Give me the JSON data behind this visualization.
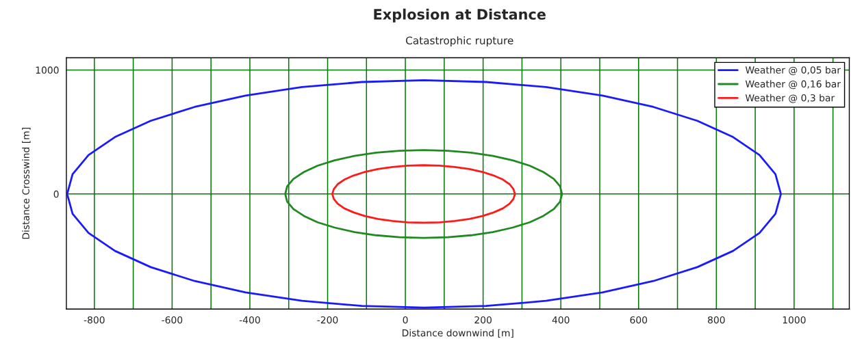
{
  "chart_data": {
    "type": "line",
    "title": "Explosion at Distance",
    "subtitle": "Catastrophic rupture",
    "xlabel": "Distance downwind [m]",
    "ylabel": "Distance Crosswind [m]",
    "series": [
      {
        "name": "Weather @ 0,05 bar",
        "color": "#1a1aff",
        "x": [
          966,
          952,
          911,
          843,
          751,
          638,
          507,
          362,
          208,
          48,
          -112,
          -266,
          -411,
          -542,
          -655,
          -747,
          -815,
          -856,
          -870,
          null,
          -870,
          -856,
          -815,
          -747,
          -655,
          -542,
          -411,
          -266,
          -112,
          48,
          208,
          362,
          507,
          638,
          751,
          843,
          911,
          952,
          966
        ],
        "values": [
          0,
          160,
          314,
          459,
          590,
          702,
          794,
          862,
          903,
          917,
          903,
          862,
          794,
          702,
          590,
          459,
          314,
          160,
          0,
          null,
          0,
          -160,
          -314,
          -459,
          -590,
          -702,
          -794,
          -862,
          -903,
          -917,
          -903,
          -862,
          -794,
          -702,
          -590,
          -459,
          -314,
          -160,
          0
        ]
      },
      {
        "name": "Weather @ 0,16 bar",
        "color": "#1f8a1f",
        "x": [
          403,
          398,
          382,
          355,
          320,
          276,
          225,
          169,
          109,
          47,
          -15,
          -75,
          -131,
          -182,
          -226,
          -261,
          -288,
          -304,
          -309,
          null,
          -309,
          -304,
          -288,
          -261,
          -226,
          -182,
          -131,
          -75,
          -15,
          47,
          109,
          169,
          225,
          276,
          320,
          355,
          382,
          398,
          403
        ],
        "values": [
          0,
          62,
          121,
          177,
          228,
          271,
          307,
          333,
          349,
          354,
          349,
          333,
          307,
          271,
          228,
          177,
          121,
          62,
          0,
          null,
          0,
          -62,
          -121,
          -177,
          -228,
          -271,
          -307,
          -333,
          -349,
          -354,
          -349,
          -333,
          -307,
          -271,
          -228,
          -177,
          -121,
          -62,
          0
        ]
      },
      {
        "name": "Weather @ 0,3 bar",
        "color": "#ff1a1a",
        "x": [
          282,
          278,
          268,
          251,
          227,
          198,
          165,
          127,
          88,
          47,
          6,
          -33,
          -71,
          -104,
          -133,
          -157,
          -174,
          -184,
          -188,
          null,
          -188,
          -184,
          -174,
          -157,
          -133,
          -104,
          -71,
          -33,
          6,
          47,
          88,
          127,
          165,
          198,
          227,
          251,
          268,
          278,
          282
        ],
        "values": [
          0,
          40,
          79,
          116,
          149,
          178,
          201,
          218,
          229,
          232,
          229,
          218,
          201,
          178,
          149,
          116,
          79,
          40,
          0,
          null,
          0,
          -40,
          -79,
          -116,
          -149,
          -178,
          -201,
          -218,
          -229,
          -232,
          -229,
          -218,
          -201,
          -178,
          -149,
          -116,
          -79,
          -40,
          0
        ]
      }
    ],
    "xlim": [
      -872,
      1142
    ],
    "ylim": [
      -928,
      1099
    ],
    "xticks": [
      -800,
      {
        "value": -700,
        "label": null
      },
      -600,
      {
        "value": -500,
        "label": null
      },
      -400,
      {
        "value": -300,
        "label": null
      },
      -200,
      {
        "value": -100,
        "label": null
      },
      0,
      {
        "value": 100,
        "label": null
      },
      200,
      {
        "value": 300,
        "label": null
      },
      400,
      {
        "value": 500,
        "label": null
      },
      600,
      {
        "value": 700,
        "label": null
      },
      800,
      {
        "value": 900,
        "label": null
      },
      1000,
      {
        "value": 1100,
        "label": null
      }
    ],
    "yticks": [
      0,
      1000
    ],
    "grid": true,
    "legend": "top right",
    "marker": "none",
    "line_style": "solid"
  }
}
